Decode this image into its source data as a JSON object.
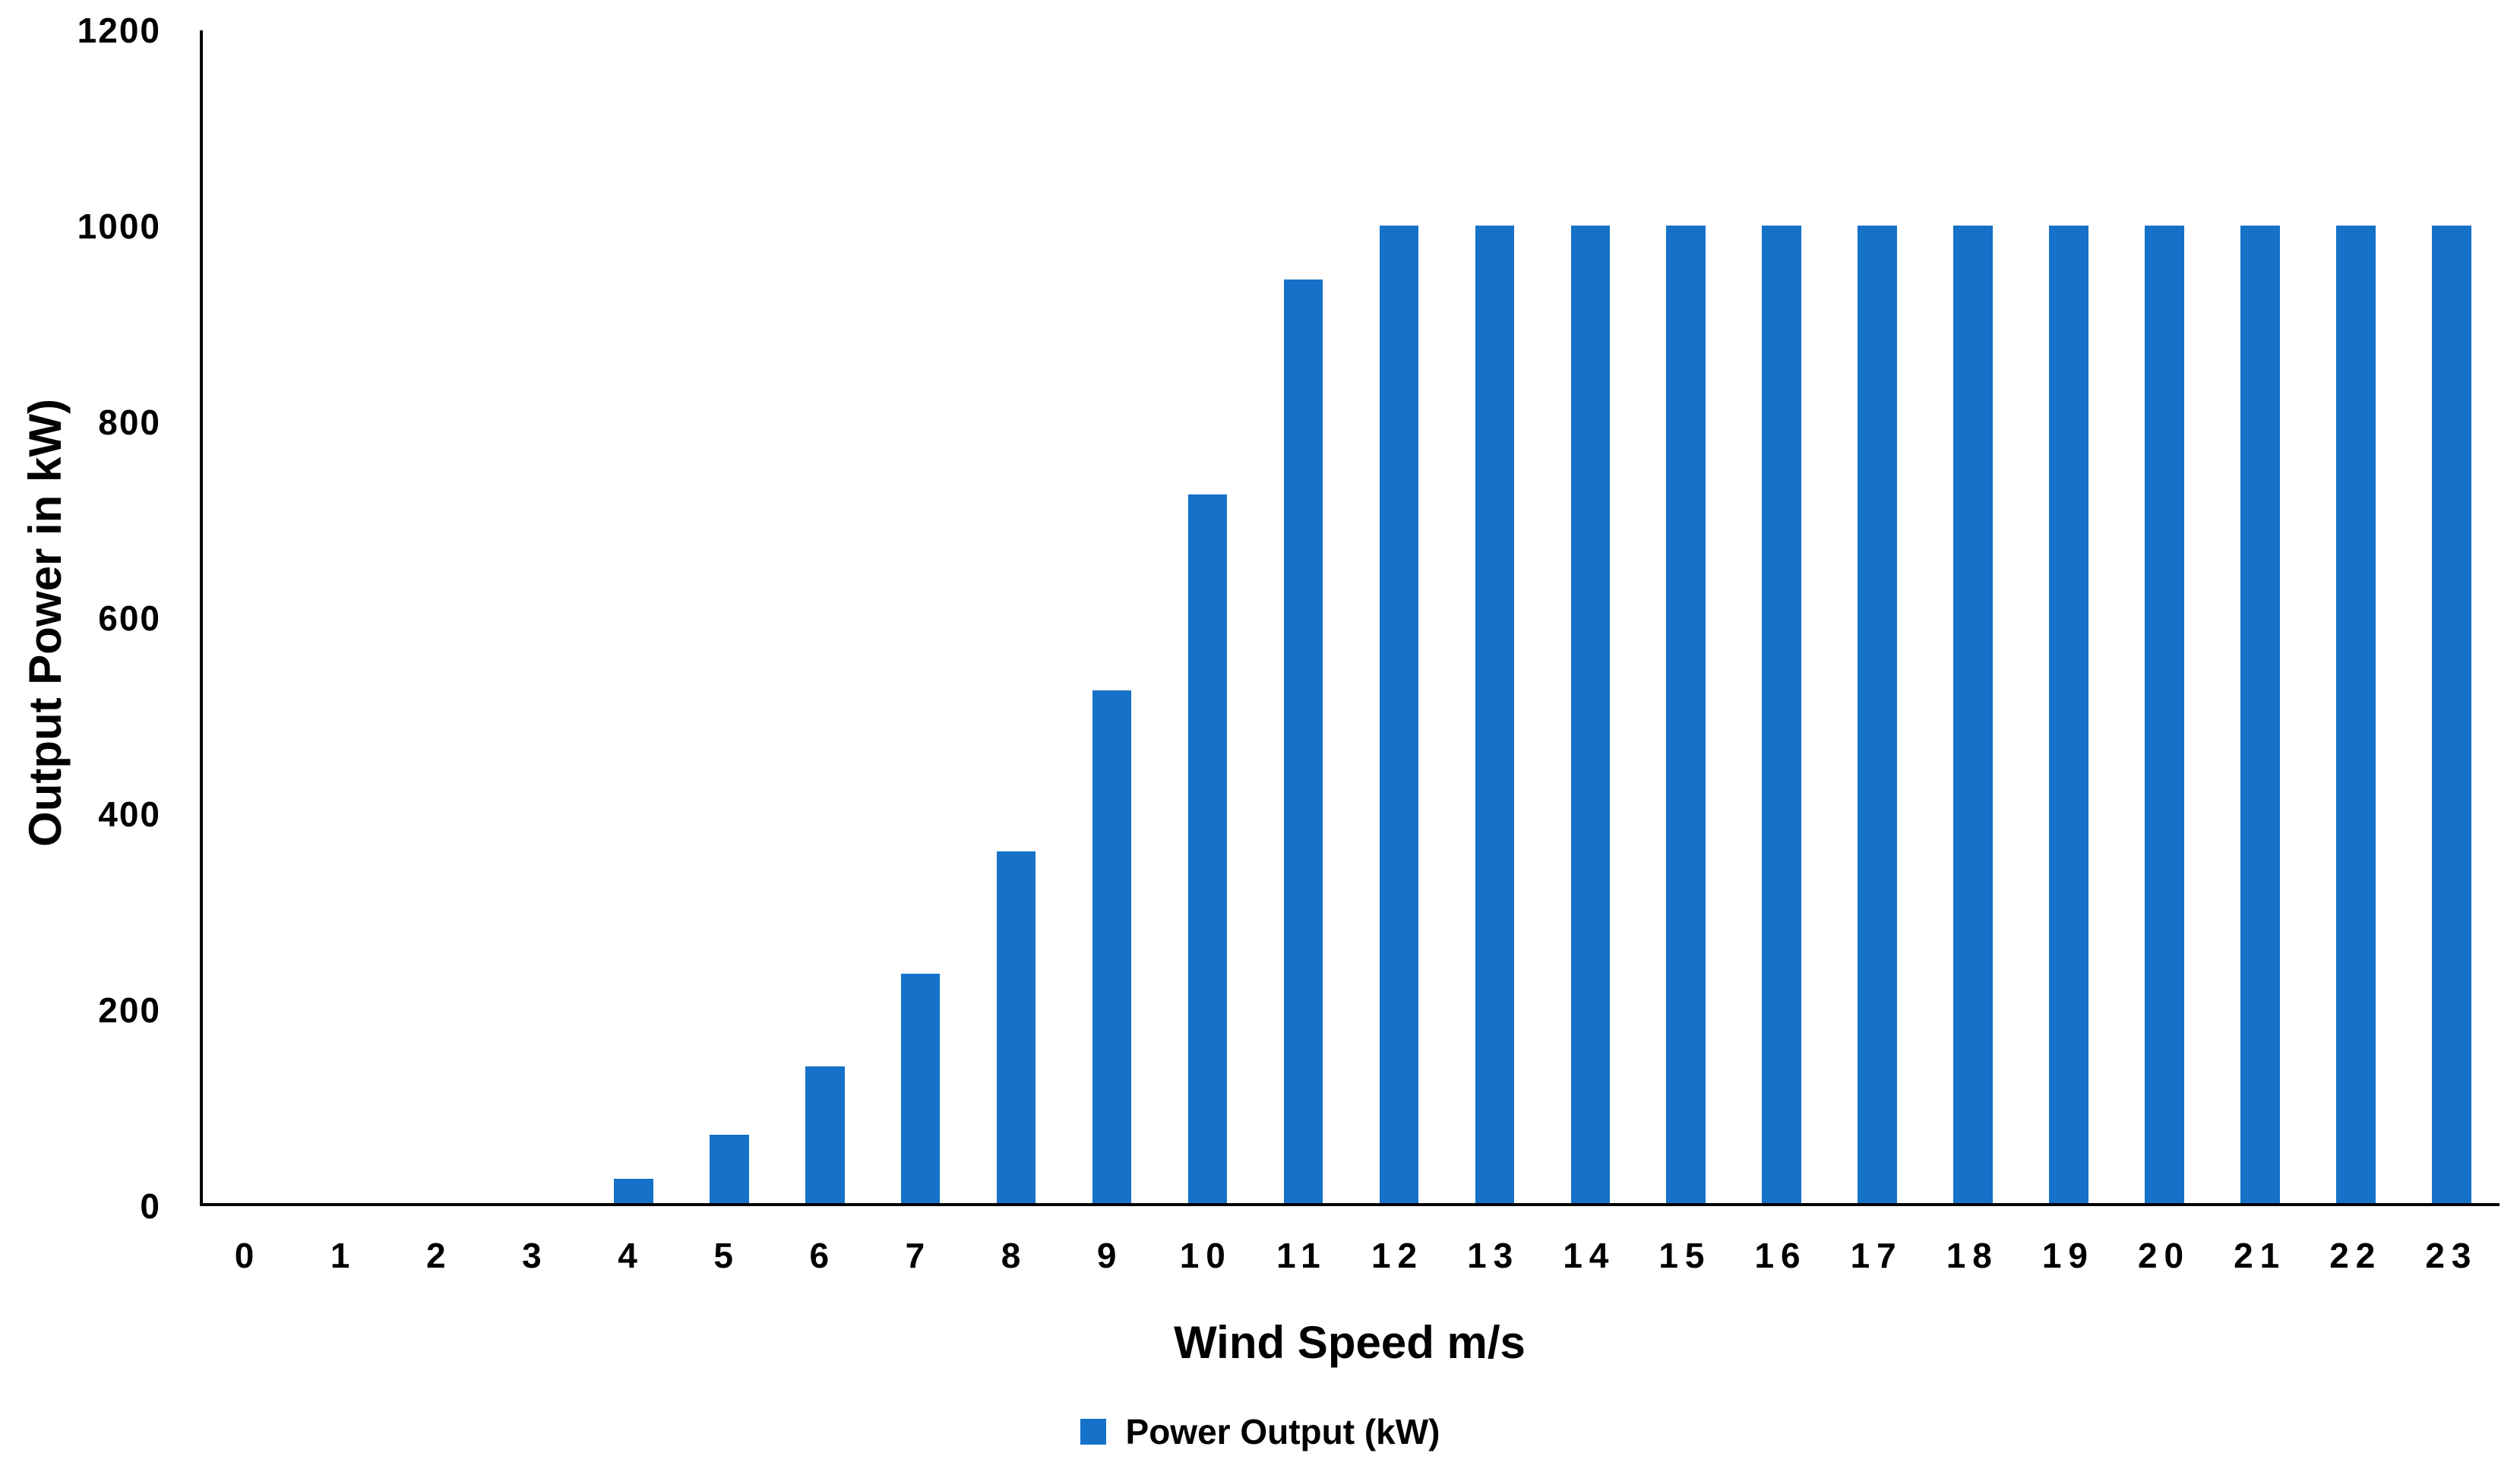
{
  "chart_data": {
    "type": "bar",
    "title": "",
    "xlabel": "Wind Speed m/s",
    "ylabel": "Output Power in kW)",
    "categories": [
      "0",
      "1",
      "2",
      "3",
      "4",
      "5",
      "6",
      "7",
      "8",
      "9",
      "10",
      "11",
      "12",
      "13",
      "14",
      "15",
      "16",
      "17",
      "18",
      "19",
      "20",
      "21",
      "22",
      "23"
    ],
    "values": [
      0,
      0,
      0,
      0,
      25,
      70,
      140,
      235,
      360,
      525,
      725,
      945,
      1000,
      1000,
      1000,
      1000,
      1000,
      1000,
      1000,
      1000,
      1000,
      1000,
      1000,
      1000
    ],
    "series_name": "Power Output (kW)",
    "ylim": [
      0,
      1200
    ],
    "yticks": [
      0,
      200,
      400,
      600,
      800,
      1000,
      1200
    ],
    "grid": false,
    "legend_position": "bottom-center",
    "bar_color": "#1572c8",
    "axis_color": "#000000"
  },
  "legend": {
    "label": "Power Output (kW)"
  }
}
